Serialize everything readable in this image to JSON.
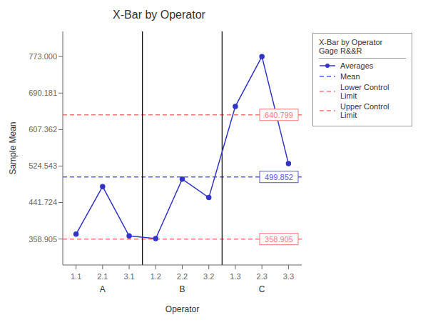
{
  "chart_data": {
    "type": "line",
    "title": "X-Bar by Operator",
    "xlabel": "Operator",
    "ylabel": "Sample Mean",
    "categories": [
      "1.1",
      "2.1",
      "3.1",
      "1.2",
      "2.2",
      "3.2",
      "1.3",
      "2.3",
      "3.3"
    ],
    "groups": [
      "A",
      "A",
      "A",
      "B",
      "B",
      "B",
      "C",
      "C",
      "C"
    ],
    "series": [
      {
        "name": "Averages",
        "color": "#3333CC",
        "marker": "circle",
        "values": [
          370.0,
          478.0,
          366.0,
          360.0,
          495.0,
          453.0,
          660.0,
          773.0,
          530.0
        ]
      }
    ],
    "reference_lines": [
      {
        "name": "Mean",
        "value": 499.852,
        "label": "499.852",
        "color": "#5555FF",
        "line_style": "dashed"
      },
      {
        "name": "Lower Control Limit",
        "value": 358.905,
        "label": "358.905",
        "color": "#FF7777",
        "line_style": "dashed"
      },
      {
        "name": "Upper Control Limit",
        "value": 640.799,
        "label": "640.799",
        "color": "#FF7777",
        "line_style": "dashed"
      }
    ],
    "ylim": [
      300,
      830
    ],
    "yticks": [
      358.905,
      441.724,
      524.543,
      607.362,
      690.181,
      {
        "value": 773,
        "label": "773.000"
      }
    ],
    "grid": false,
    "legend": "right",
    "legend_title": "X-Bar by Operator",
    "legend_subtitle": "Gage R&&R"
  }
}
